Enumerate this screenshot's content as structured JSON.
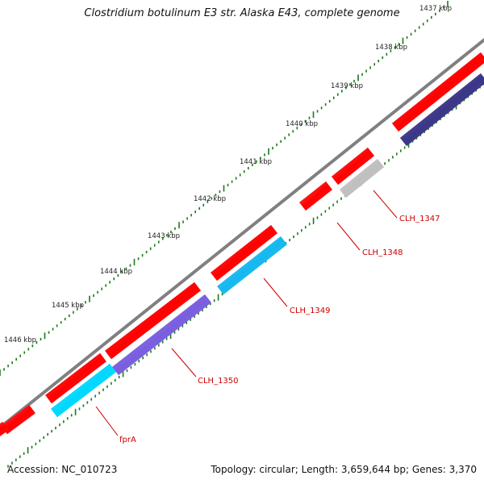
{
  "title": "Clostridium botulinum E3 str. Alaska E43, complete genome",
  "footer": {
    "accession": "Accession: NC_010723",
    "summary": "Topology: circular; Length: 3,659,644 bp; Genes: 3,370"
  },
  "kbp_labels": [
    "1437 kbp",
    "1438 kbp",
    "1439 kbp",
    "1440 kbp",
    "1441 kbp",
    "1442 kbp",
    "1443 kbp",
    "1444 kbp",
    "1445 kbp",
    "1446 kbp"
  ],
  "colors": {
    "backbone": "#808080",
    "red": "#ff0000",
    "cyan": "#00d8ff",
    "blue_light": "#15b8f0",
    "purple": "#7a5ee0",
    "navy": "#3c3688",
    "gray": "#bfbfbf",
    "tick": "#1a7a1a",
    "label": "#cc0000"
  },
  "genes": [
    {
      "name": "",
      "strand": "outer",
      "color": "red"
    },
    {
      "name": "",
      "strand": "inner",
      "color": "navy"
    },
    {
      "name": "",
      "strand": "outer",
      "color": "red"
    },
    {
      "name": "CLH_1347",
      "strand": "inner",
      "color": "gray"
    },
    {
      "name": "CLH_1348",
      "strand": "outer",
      "color": "red"
    },
    {
      "name": "",
      "strand": "outer",
      "color": "red"
    },
    {
      "name": "CLH_1349",
      "strand": "inner",
      "color": "blue_light"
    },
    {
      "name": "",
      "strand": "outer",
      "color": "red"
    },
    {
      "name": "CLH_1350",
      "strand": "inner",
      "color": "purple"
    },
    {
      "name": "",
      "strand": "outer",
      "color": "red"
    },
    {
      "name": "fprA",
      "strand": "inner",
      "color": "cyan"
    },
    {
      "name": "",
      "strand": "outer",
      "color": "red"
    },
    {
      "name": "",
      "strand": "outer",
      "color": "red"
    }
  ]
}
